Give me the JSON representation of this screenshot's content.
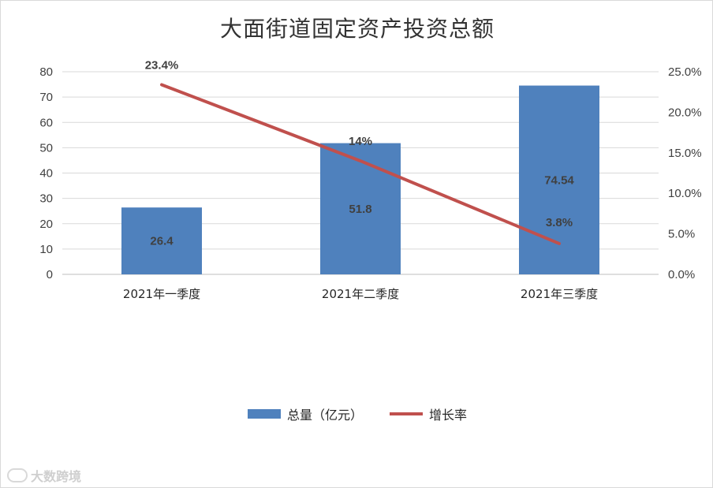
{
  "chart_data": {
    "type": "bar",
    "title": "大面街道固定资产投资总额",
    "categories": [
      "2021年一季度",
      "2021年二季度",
      "2021年三季度"
    ],
    "series": [
      {
        "name": "总量（亿元）",
        "kind": "bar",
        "axis": "left",
        "color": "#4f81bd",
        "values": [
          26.4,
          51.8,
          74.54
        ],
        "labels": [
          "26.4",
          "51.8",
          "74.54"
        ]
      },
      {
        "name": "增长率",
        "kind": "line",
        "axis": "right",
        "color": "#c0504d",
        "values": [
          23.4,
          14,
          3.8
        ],
        "labels": [
          "23.4%",
          "14%",
          "3.8%"
        ]
      }
    ],
    "y_left": {
      "ylim": [
        0,
        80
      ],
      "ticks": [
        "0",
        "10",
        "20",
        "30",
        "40",
        "50",
        "60",
        "70",
        "80"
      ]
    },
    "y_right": {
      "ylim": [
        0,
        25
      ],
      "ticks": [
        "0.0%",
        "5.0%",
        "10.0%",
        "15.0%",
        "20.0%",
        "25.0%"
      ]
    },
    "grid": true,
    "legend": "bottom"
  },
  "watermark": {
    "text": "大数跨境"
  }
}
